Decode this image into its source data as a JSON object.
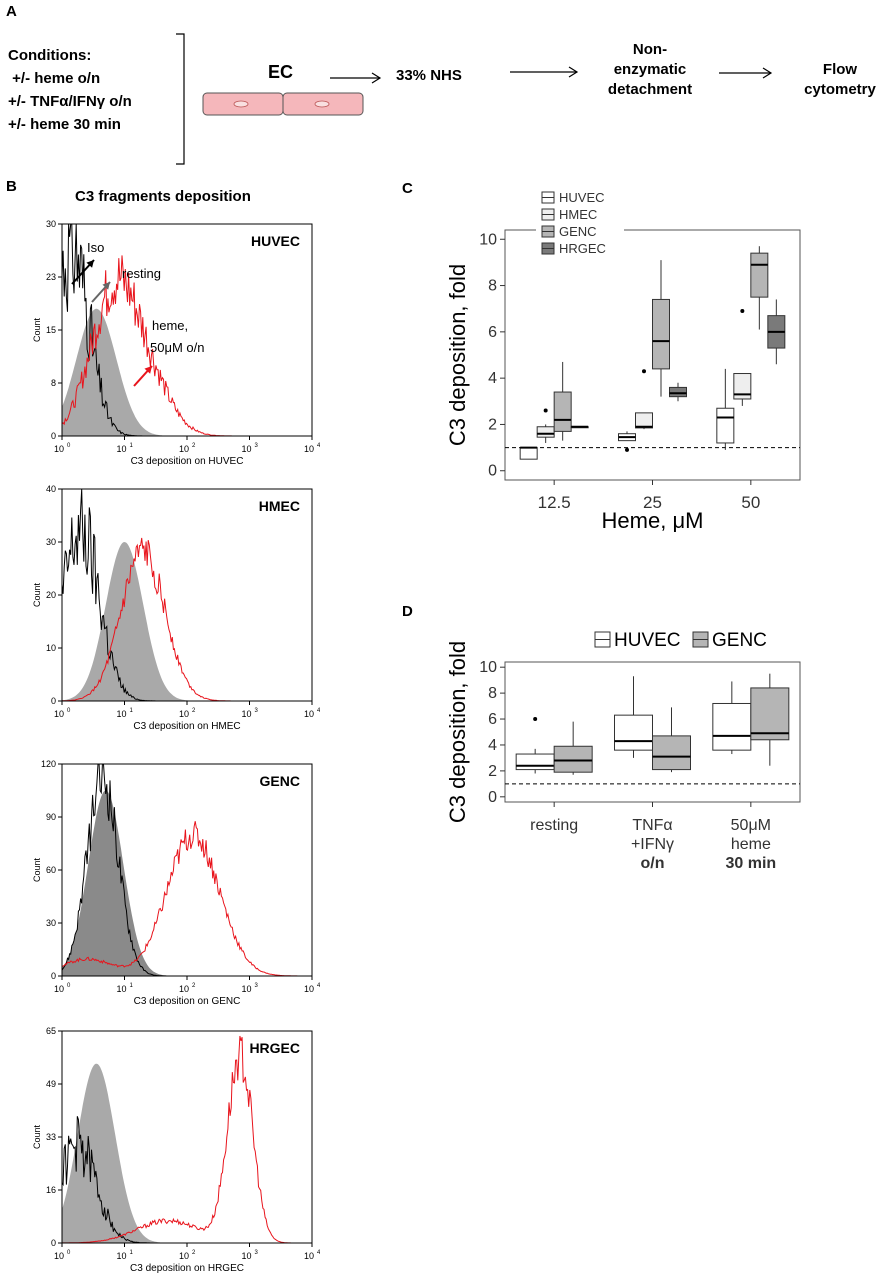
{
  "panel_a": {
    "letter": "A",
    "conditions_title": "Conditions:",
    "conditions": [
      " +/- heme o/n",
      "+/- TNFα/IFNγ o/n",
      "+/- heme 30 min"
    ],
    "cell_label": "EC",
    "steps": [
      "33% NHS",
      "Non-enzymatic detachment",
      "Flow cytometry"
    ],
    "step_lines": [
      [
        "Non-",
        "enzymatic",
        "detachment"
      ],
      [
        "Flow",
        "cytometry"
      ]
    ]
  },
  "panel_b": {
    "letter": "B",
    "title": "C3 fragments deposition",
    "ylabel": "Count",
    "x_ticks": [
      "10",
      "10",
      "10",
      "10",
      "10"
    ],
    "x_tick_exps": [
      "0",
      "1",
      "2",
      "3",
      "4"
    ],
    "histograms": [
      {
        "name": "HUVEC",
        "xlabel": "C3 deposition on HUVEC",
        "y_ticks": [
          "0",
          "8",
          "15",
          "23",
          "30"
        ],
        "ymax": 30,
        "annotations": [
          "Iso",
          "resting",
          "heme,",
          "50μM o/n"
        ],
        "series": {
          "iso": {
            "log_center": 0.15,
            "width": 0.28,
            "peak": 27,
            "noise": 0.35
          },
          "resting": {
            "log_center": 0.55,
            "width": 0.32,
            "peak": 18
          },
          "heme": {
            "log_center": 0.85,
            "width": 0.38,
            "peak": 21,
            "noise": 0.2,
            "tail": 0.25
          }
        }
      },
      {
        "name": "HMEC",
        "xlabel": "C3 deposition on HMEC",
        "y_ticks": [
          "0",
          "10",
          "20",
          "30",
          "40"
        ],
        "ymax": 40,
        "annotations": [],
        "series": {
          "iso": {
            "log_center": 0.3,
            "width": 0.3,
            "peak": 32,
            "noise": 0.3
          },
          "resting": {
            "log_center": 1.0,
            "width": 0.3,
            "peak": 30
          },
          "heme": {
            "log_center": 1.3,
            "width": 0.35,
            "peak": 28,
            "noise": 0.12
          }
        }
      },
      {
        "name": "GENC",
        "xlabel": "C3 deposition on GENC",
        "y_ticks": [
          "0",
          "30",
          "60",
          "90",
          "120"
        ],
        "ymax": 120,
        "annotations": [],
        "series": {
          "iso": {
            "log_center": 0.65,
            "width": 0.25,
            "peak": 112,
            "noise": 0.15
          },
          "resting": {
            "log_center": 0.7,
            "width": 0.28,
            "peak": 105
          },
          "heme": {
            "log_center": 2.1,
            "width": 0.42,
            "peak": 80,
            "noise": 0.1,
            "shoulder": 0.12
          }
        }
      },
      {
        "name": "HRGEC",
        "xlabel": "C3 deposition on HRGEC",
        "y_ticks": [
          "0",
          "16",
          "33",
          "49",
          "65"
        ],
        "ymax": 65,
        "annotations": [],
        "series": {
          "iso": {
            "log_center": 0.25,
            "width": 0.3,
            "peak": 30,
            "noise": 0.3
          },
          "resting": {
            "log_center": 0.55,
            "width": 0.3,
            "peak": 55
          },
          "heme": {
            "log_center": 2.85,
            "width": 0.2,
            "peak": 57,
            "noise": 0.12,
            "lefttail": 0.12
          }
        }
      }
    ]
  },
  "chart_data": [
    {
      "panel": "C",
      "type": "boxplot",
      "title": "",
      "xlabel": "Heme, μM",
      "ylabel": "C3 deposition, fold",
      "categories": [
        "12.5",
        "25",
        "50"
      ],
      "y_ticks": [
        "0",
        "2",
        "4",
        "6",
        "8",
        "10"
      ],
      "ylim": [
        -0.4,
        10.4
      ],
      "reference_line": 1,
      "legend_position": "top-left",
      "series": [
        {
          "name": "HUVEC",
          "color": "#ffffff",
          "boxes": [
            {
              "min": 0.5,
              "q1": 0.5,
              "median": 1.0,
              "q3": 1.0,
              "max": 1.0,
              "outliers": []
            },
            {
              "min": 1.3,
              "q1": 1.3,
              "median": 1.45,
              "q3": 1.6,
              "max": 1.7,
              "outliers": [
                0.9
              ]
            },
            {
              "min": 0.9,
              "q1": 1.2,
              "median": 2.3,
              "q3": 2.7,
              "max": 4.4,
              "outliers": []
            }
          ]
        },
        {
          "name": "HMEC",
          "color": "#eeeeee",
          "boxes": [
            {
              "min": 1.2,
              "q1": 1.45,
              "median": 1.6,
              "q3": 1.9,
              "max": 2.0,
              "outliers": [
                2.6
              ]
            },
            {
              "min": 1.8,
              "q1": 1.85,
              "median": 1.9,
              "q3": 2.5,
              "max": 2.5,
              "outliers": [
                4.3
              ]
            },
            {
              "min": 2.8,
              "q1": 3.1,
              "median": 3.3,
              "q3": 4.2,
              "max": 4.2,
              "outliers": [
                6.9
              ]
            }
          ]
        },
        {
          "name": "GENC",
          "color": "#b5b5b5",
          "boxes": [
            {
              "min": 1.3,
              "q1": 1.7,
              "median": 2.2,
              "q3": 3.4,
              "max": 4.7,
              "outliers": []
            },
            {
              "min": 3.2,
              "q1": 4.4,
              "median": 5.6,
              "q3": 7.4,
              "max": 9.1,
              "outliers": []
            },
            {
              "min": 6.1,
              "q1": 7.5,
              "median": 8.9,
              "q3": 9.4,
              "max": 9.7,
              "outliers": []
            }
          ]
        },
        {
          "name": "HRGEC",
          "color": "#7a7a7a",
          "boxes": [
            {
              "min": 1.9,
              "q1": 1.9,
              "median": 1.9,
              "q3": 1.9,
              "max": 1.9,
              "outliers": []
            },
            {
              "min": 3.0,
              "q1": 3.2,
              "median": 3.35,
              "q3": 3.6,
              "max": 3.8,
              "outliers": []
            },
            {
              "min": 4.6,
              "q1": 5.3,
              "median": 6.0,
              "q3": 6.7,
              "max": 7.4,
              "outliers": []
            }
          ]
        }
      ]
    },
    {
      "panel": "D",
      "type": "boxplot",
      "title": "",
      "xlabel": "",
      "ylabel": "C3 deposition, fold",
      "categories": [
        "resting",
        "TNFα +IFNγ o/n",
        "50μM heme 30 min"
      ],
      "category_lines": [
        [
          "resting"
        ],
        [
          "TNFα",
          "+IFNγ",
          "o/n"
        ],
        [
          "50μM",
          "heme",
          "30 min"
        ]
      ],
      "y_ticks": [
        "0",
        "2",
        "4",
        "6",
        "8",
        "10"
      ],
      "ylim": [
        -0.4,
        10.4
      ],
      "reference_line": 1,
      "legend_position": "top",
      "series": [
        {
          "name": "HUVEC",
          "color": "#ffffff",
          "boxes": [
            {
              "min": 1.8,
              "q1": 2.1,
              "median": 2.4,
              "q3": 3.3,
              "max": 3.7,
              "outliers": [
                6.0
              ]
            },
            {
              "min": 3.0,
              "q1": 3.6,
              "median": 4.3,
              "q3": 6.3,
              "max": 9.3,
              "outliers": []
            },
            {
              "min": 3.3,
              "q1": 3.6,
              "median": 4.7,
              "q3": 7.2,
              "max": 8.9,
              "outliers": []
            }
          ]
        },
        {
          "name": "GENC",
          "color": "#b5b5b5",
          "boxes": [
            {
              "min": 1.7,
              "q1": 1.9,
              "median": 2.8,
              "q3": 3.9,
              "max": 5.8,
              "outliers": []
            },
            {
              "min": 1.9,
              "q1": 2.1,
              "median": 3.1,
              "q3": 4.7,
              "max": 6.9,
              "outliers": []
            },
            {
              "min": 2.4,
              "q1": 4.4,
              "median": 4.9,
              "q3": 8.4,
              "max": 9.5,
              "outliers": []
            }
          ]
        }
      ]
    }
  ]
}
